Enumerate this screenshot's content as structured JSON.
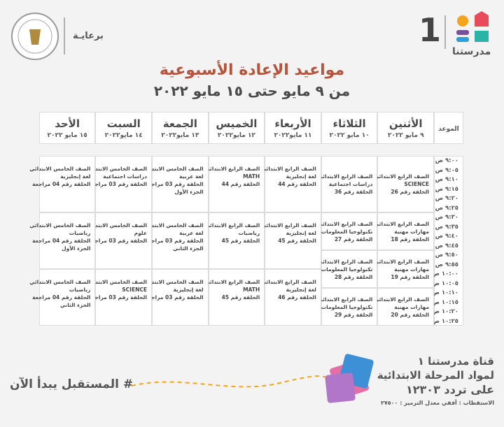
{
  "header": {
    "sponsor": "برعايـة",
    "channel_logo": "مدرستنا",
    "channel_number": "1"
  },
  "title": "مواعيد الإعادة الأسبوعية",
  "subtitle": "من ٩ مايو حتى ١٥ مايو ٢٠٢٢",
  "table": {
    "time_header": "الموعد",
    "times": [
      "٩:٠٠ ص",
      "٩:٠٥ ص",
      "٩:١٠ ص",
      "٩:١٥ ص",
      "٩:٢٠ ص",
      "٩:٢٥ ص",
      "٩:٣٠ ص",
      "٩:٣٥ ص",
      "٩:٤٠ ص",
      "٩:٤٥ ص",
      "٩:٥٠ ص",
      "٩:٥٥ ص",
      "١٠:٠٠ ص",
      "١٠:٠٥ ص",
      "١٠:١٠ ص",
      "١٠:١٥ ص",
      "١٠:٢٠ ص",
      "١٠:٢٥ ص"
    ],
    "days": [
      {
        "name": "الأثنين",
        "date": "٩ مايو ٢٠٢٢",
        "sessions": [
          {
            "lines": [
              "الصف الرابع الابتدائي",
              "SCIENCE",
              "الحلقة رقم 26"
            ]
          },
          {
            "lines": [
              "الصف الرابع الابتدائي",
              "مهارات مهنية",
              "الحلقة رقم 18"
            ]
          },
          {
            "lines": [
              "الصف الرابع الابتدائي",
              "مهارات مهنية",
              "الحلقة رقم 19"
            ]
          },
          {
            "lines": [
              "الصف الرابع الابتدائي",
              "مهارات مهنية",
              "الحلقة رقم 20"
            ]
          }
        ]
      },
      {
        "name": "الثلاثاء",
        "date": "١٠ مايو ٢٠٢٢",
        "sessions": [
          {
            "lines": [
              "الصف الرابع الابتدائي",
              "دراسات اجتماعية",
              "الحلقة رقم 36"
            ]
          },
          {
            "lines": [
              "الصف الرابع الابتدائي",
              "تكنولوجيا المعلومات",
              "الحلقة رقم 27"
            ]
          },
          {
            "lines": [
              "الصف الرابع الابتدائي",
              "تكنولوجيا المعلومات",
              "الحلقة رقم 28"
            ]
          },
          {
            "lines": [
              "الصف الرابع الابتدائي",
              "تكنولوجيا المعلومات",
              "الحلقة رقم 29"
            ]
          }
        ]
      },
      {
        "name": "الأربعاء",
        "date": "١١ مايو٢٠٢٢",
        "sessions": [
          {
            "lines": [
              "الصف الرابع الابتدائي",
              "لغة إنجليزية",
              "الحلقة رقم 44"
            ]
          },
          {
            "lines": [
              "الصف الرابع الابتدائي",
              "لغة إنجليزية",
              "الحلقة رقم 45"
            ]
          },
          {
            "lines": [
              "الصف الرابع الابتدائي",
              "لغة إنجليزية",
              "الحلقة رقم 46"
            ]
          }
        ]
      },
      {
        "name": "الخميس",
        "date": "١٢ مايو٢٠٢٢",
        "sessions": [
          {
            "lines": [
              "الصف الرابع الابتدائي",
              "MATH",
              "الحلقة رقم 44"
            ]
          },
          {
            "lines": [
              "الصف الرابع الابتدائي",
              "رياضيات",
              "الحلقة رقم 45"
            ]
          },
          {
            "lines": [
              "الصف الرابع الابتدائي",
              "MATH",
              "الحلقة رقم 45"
            ]
          }
        ]
      },
      {
        "name": "الجمعة",
        "date": "١٣ مايو٢٠٢٢",
        "sessions": [
          {
            "lines": [
              "الصف الخامس الابتدائي",
              "لغة عربية",
              "الحلقة رقم 03 مراجعة",
              "الجزء الأول"
            ]
          },
          {
            "lines": [
              "الصف الخامس الابتدائي",
              "لغة عربية",
              "الحلقة رقم 03 مراجعة",
              "الجزء الثاني"
            ]
          },
          {
            "lines": [
              "الصف الخامس الابتدائي",
              "لغة إنجليزية",
              "الحلقة رقم 03 مراجعة"
            ]
          }
        ]
      },
      {
        "name": "السبت",
        "date": "١٤ مايو٢٠٢٢",
        "sessions": [
          {
            "lines": [
              "الصف الخامس الابتدائي",
              "دراسات اجتماعية",
              "الحلقة رقم 03 مراجعة"
            ]
          },
          {
            "lines": [
              "الصف الخامس الابتدائي",
              "علوم",
              "الحلقة رقم 03 مراجعة"
            ]
          },
          {
            "lines": [
              "الصف الخامس الابتدائي",
              "SCIENCE",
              "الحلقة رقم 03 مراجعة"
            ]
          }
        ]
      },
      {
        "name": "الأحد",
        "date": "١٥ مايو ٢٠٢٢",
        "sessions": [
          {
            "lines": [
              "الصف الخامس الابتدائي",
              "لغة إنجليزية",
              "الحلقة رقم 04 مراجعة"
            ]
          },
          {
            "lines": [
              "الصف الخامس الابتدائي",
              "رياضيات",
              "الحلقة رقم 04 مراجعة",
              "الجزء الأول"
            ]
          },
          {
            "lines": [
              "الصف الخامس الابتدائي",
              "رياضيات",
              "الحلقة رقم 04 مراجعة",
              "الجزء الثاني"
            ]
          }
        ]
      }
    ]
  },
  "footer": {
    "slogan": "# المستقبل يبدأ الآن",
    "channel": "قناة مدرستنا ١",
    "subjects": "لمواد المرحلة الابتدائية",
    "frequency": "على تردد ١٢٣٠٣",
    "polarization": "الاستقطاب : أفقي معدل الترميز : ٢٧٥٠٠"
  }
}
